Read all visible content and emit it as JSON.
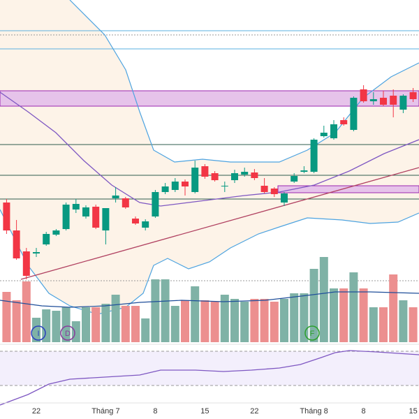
{
  "chart_data": {
    "type": "candlestick",
    "categories": [
      null,
      null,
      null,
      "22",
      null,
      null,
      null,
      null,
      null,
      null,
      "Tháng 7",
      null,
      null,
      null,
      null,
      "8",
      null,
      null,
      null,
      null,
      "15",
      null,
      null,
      null,
      null,
      "22",
      null,
      null,
      null,
      null,
      null,
      "Tháng 8",
      null,
      null,
      null,
      null,
      "8",
      null,
      null,
      null,
      null,
      "15"
    ],
    "open": [
      310,
      270,
      240,
      237,
      250,
      264,
      272,
      300,
      290,
      304,
      270,
      316,
      316,
      287,
      274,
      290,
      325,
      328,
      340,
      325,
      362,
      352,
      333,
      342,
      350,
      353,
      334,
      330,
      310,
      340,
      354,
      354,
      405,
      402,
      428,
      414,
      472,
      455,
      460,
      463,
      443,
      468
    ],
    "high": [
      315,
      285,
      245,
      245,
      268,
      272,
      310,
      315,
      306,
      307,
      302,
      332,
      318,
      290,
      286,
      328,
      338,
      345,
      343,
      370,
      365,
      355,
      340,
      357,
      360,
      358,
      345,
      332,
      325,
      352,
      362,
      402,
      420,
      428,
      432,
      462,
      478,
      468,
      470,
      472,
      465,
      474
    ],
    "low": [
      265,
      228,
      200,
      232,
      248,
      262,
      270,
      295,
      287,
      272,
      250,
      310,
      301,
      278,
      270,
      288,
      322,
      325,
      320,
      323,
      344,
      340,
      325,
      338,
      347,
      342,
      323,
      318,
      305,
      338,
      352,
      352,
      403,
      400,
      420,
      412,
      453,
      450,
      448,
      432,
      438,
      454
    ],
    "close": [
      270,
      230,
      205,
      239,
      265,
      270,
      307,
      308,
      303,
      274,
      302,
      320,
      303,
      280,
      283,
      325,
      333,
      340,
      333,
      360,
      347,
      342,
      334,
      352,
      354,
      345,
      325,
      322,
      323,
      348,
      356,
      400,
      410,
      422,
      422,
      460,
      455,
      458,
      450,
      450,
      463,
      458
    ],
    "volume": [
      72,
      60,
      87,
      35,
      47,
      45,
      50,
      30,
      50,
      50,
      55,
      68,
      52,
      52,
      34,
      90,
      90,
      52,
      60,
      80,
      60,
      58,
      68,
      62,
      58,
      62,
      62,
      58,
      62,
      70,
      70,
      105,
      122,
      77,
      77,
      100,
      77,
      50,
      50,
      97,
      60,
      50
    ],
    "ylim": [
      0,
      600
    ],
    "up_color": "#089981",
    "down_color": "#f23645",
    "volume_up_color": "#7fb2a6",
    "volume_down_color": "#ec8f8f",
    "annotations": [
      "I",
      "D",
      "F"
    ]
  }
}
